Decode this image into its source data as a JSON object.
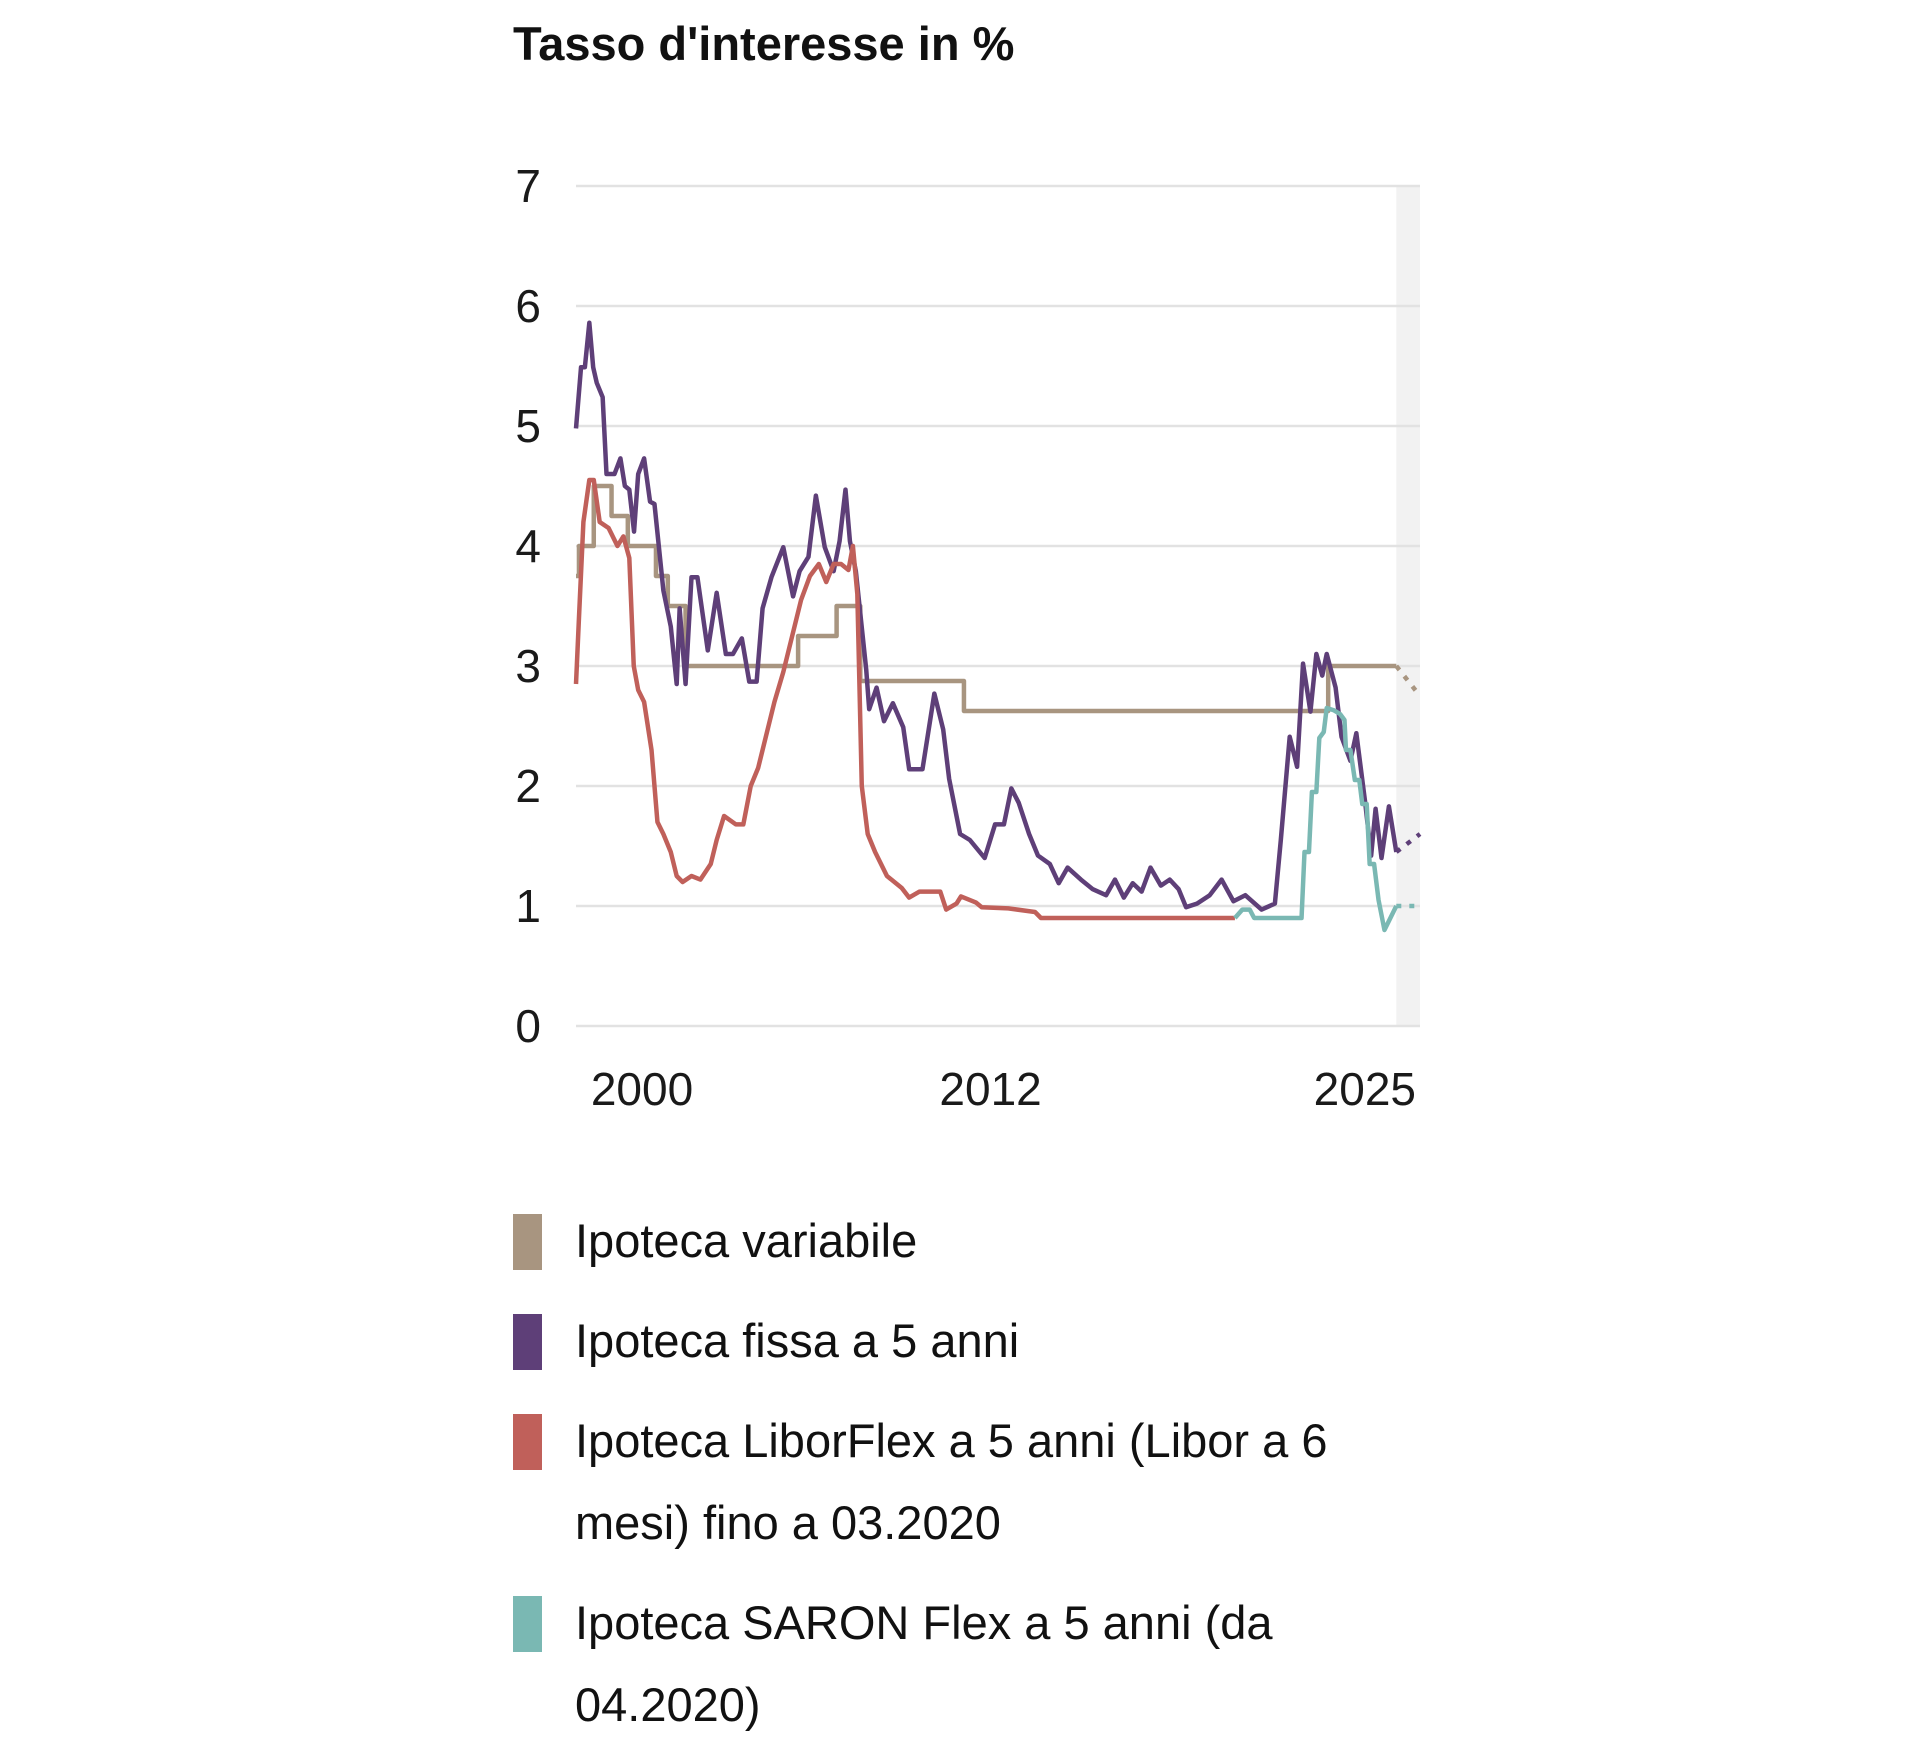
{
  "chart_data": {
    "type": "line",
    "title": "Tasso d'interesse in %",
    "xlabel": "",
    "ylabel": "",
    "xlim": [
      1998,
      2026.5
    ],
    "ylim": [
      0,
      7
    ],
    "y_ticks": [
      "0",
      "1",
      "2",
      "3",
      "4",
      "5",
      "6",
      "7"
    ],
    "x_ticks": [
      "2000",
      "2012",
      "2025"
    ],
    "grid": true,
    "forecast_shading_from": 2025.7,
    "legend_placement": "bottom",
    "series": [
      {
        "name": "Ipoteca variabile",
        "color": "#a89580",
        "step": true,
        "points": [
          [
            1998.0,
            3.75
          ],
          [
            1998.1,
            4.0
          ],
          [
            1998.6,
            4.5
          ],
          [
            1999.2,
            4.25
          ],
          [
            1999.75,
            4.0
          ],
          [
            2000.7,
            3.75
          ],
          [
            2001.1,
            3.5
          ],
          [
            2001.7,
            3.0
          ],
          [
            2005.5,
            3.25
          ],
          [
            2006.8,
            3.5
          ],
          [
            2007.6,
            2.875
          ],
          [
            2011.1,
            2.625
          ],
          [
            2023.4,
            3.0
          ],
          [
            2025.7,
            3.0
          ]
        ],
        "forecast": [
          [
            2025.7,
            3.0
          ],
          [
            2026.5,
            2.75
          ]
        ]
      },
      {
        "name": "Ipoteca fissa a 5 anni",
        "color": "#5e3f78",
        "step": false,
        "points": [
          [
            1998.0,
            4.98
          ],
          [
            1998.17,
            5.49
          ],
          [
            1998.3,
            5.49
          ],
          [
            1998.45,
            5.86
          ],
          [
            1998.58,
            5.49
          ],
          [
            1998.7,
            5.36
          ],
          [
            1998.9,
            5.24
          ],
          [
            1999.03,
            4.6
          ],
          [
            1999.3,
            4.6
          ],
          [
            1999.5,
            4.73
          ],
          [
            1999.65,
            4.5
          ],
          [
            1999.8,
            4.47
          ],
          [
            1999.96,
            4.12
          ],
          [
            2000.1,
            4.6
          ],
          [
            2000.3,
            4.73
          ],
          [
            2000.5,
            4.37
          ],
          [
            2000.65,
            4.35
          ],
          [
            2000.95,
            3.63
          ],
          [
            2001.2,
            3.33
          ],
          [
            2001.4,
            2.85
          ],
          [
            2001.5,
            3.48
          ],
          [
            2001.7,
            2.85
          ],
          [
            2001.9,
            3.74
          ],
          [
            2002.1,
            3.74
          ],
          [
            2002.45,
            3.13
          ],
          [
            2002.75,
            3.61
          ],
          [
            2003.06,
            3.1
          ],
          [
            2003.3,
            3.1
          ],
          [
            2003.6,
            3.23
          ],
          [
            2003.85,
            2.87
          ],
          [
            2004.1,
            2.87
          ],
          [
            2004.3,
            3.48
          ],
          [
            2004.6,
            3.74
          ],
          [
            2005.0,
            3.99
          ],
          [
            2005.33,
            3.58
          ],
          [
            2005.55,
            3.79
          ],
          [
            2005.85,
            3.91
          ],
          [
            2006.1,
            4.42
          ],
          [
            2006.4,
            3.99
          ],
          [
            2006.7,
            3.79
          ],
          [
            2006.9,
            4.04
          ],
          [
            2007.1,
            4.47
          ],
          [
            2007.25,
            4.04
          ],
          [
            2007.45,
            3.79
          ],
          [
            2007.8,
            2.97
          ],
          [
            2007.9,
            2.64
          ],
          [
            2008.15,
            2.82
          ],
          [
            2008.4,
            2.54
          ],
          [
            2008.7,
            2.69
          ],
          [
            2009.05,
            2.49
          ],
          [
            2009.25,
            2.14
          ],
          [
            2009.7,
            2.14
          ],
          [
            2010.1,
            2.77
          ],
          [
            2010.4,
            2.47
          ],
          [
            2010.6,
            2.06
          ],
          [
            2010.97,
            1.6
          ],
          [
            2011.3,
            1.55
          ],
          [
            2011.8,
            1.4
          ],
          [
            2012.15,
            1.68
          ],
          [
            2012.45,
            1.68
          ],
          [
            2012.7,
            1.98
          ],
          [
            2012.95,
            1.86
          ],
          [
            2013.3,
            1.6
          ],
          [
            2013.6,
            1.42
          ],
          [
            2014.0,
            1.35
          ],
          [
            2014.3,
            1.19
          ],
          [
            2014.6,
            1.32
          ],
          [
            2015.05,
            1.22
          ],
          [
            2015.45,
            1.14
          ],
          [
            2015.9,
            1.09
          ],
          [
            2016.2,
            1.22
          ],
          [
            2016.5,
            1.07
          ],
          [
            2016.8,
            1.19
          ],
          [
            2017.1,
            1.12
          ],
          [
            2017.4,
            1.32
          ],
          [
            2017.75,
            1.17
          ],
          [
            2018.05,
            1.22
          ],
          [
            2018.35,
            1.14
          ],
          [
            2018.6,
            0.99
          ],
          [
            2018.97,
            1.02
          ],
          [
            2019.4,
            1.09
          ],
          [
            2019.8,
            1.22
          ],
          [
            2020.2,
            1.04
          ],
          [
            2020.6,
            1.09
          ],
          [
            2021.15,
            0.97
          ],
          [
            2021.6,
            1.02
          ],
          [
            2021.8,
            1.55
          ],
          [
            2022.1,
            2.41
          ],
          [
            2022.35,
            2.16
          ],
          [
            2022.55,
            3.02
          ],
          [
            2022.8,
            2.62
          ],
          [
            2023.0,
            3.1
          ],
          [
            2023.2,
            2.92
          ],
          [
            2023.35,
            3.1
          ],
          [
            2023.65,
            2.82
          ],
          [
            2023.85,
            2.41
          ],
          [
            2024.15,
            2.21
          ],
          [
            2024.35,
            2.44
          ],
          [
            2024.65,
            1.86
          ],
          [
            2024.85,
            1.42
          ],
          [
            2025.0,
            1.81
          ],
          [
            2025.2,
            1.4
          ],
          [
            2025.45,
            1.83
          ],
          [
            2025.7,
            1.45
          ]
        ],
        "forecast": [
          [
            2025.7,
            1.45
          ],
          [
            2026.5,
            1.6
          ]
        ]
      },
      {
        "name": "Ipoteca LiborFlex a 5 anni (Libor a 6 mesi) fino a 03.2020",
        "color": "#c0605a",
        "step": false,
        "points": [
          [
            1998.0,
            2.85
          ],
          [
            1998.1,
            3.4
          ],
          [
            1998.25,
            4.2
          ],
          [
            1998.45,
            4.55
          ],
          [
            1998.6,
            4.55
          ],
          [
            1998.8,
            4.2
          ],
          [
            1999.1,
            4.15
          ],
          [
            1999.4,
            4.0
          ],
          [
            1999.6,
            4.08
          ],
          [
            1999.8,
            3.9
          ],
          [
            1999.95,
            3.0
          ],
          [
            2000.1,
            2.8
          ],
          [
            2000.3,
            2.7
          ],
          [
            2000.55,
            2.3
          ],
          [
            2000.75,
            1.7
          ],
          [
            2000.95,
            1.6
          ],
          [
            2001.2,
            1.45
          ],
          [
            2001.4,
            1.25
          ],
          [
            2001.6,
            1.2
          ],
          [
            2001.9,
            1.25
          ],
          [
            2002.2,
            1.22
          ],
          [
            2002.55,
            1.35
          ],
          [
            2002.75,
            1.55
          ],
          [
            2003.0,
            1.75
          ],
          [
            2003.4,
            1.68
          ],
          [
            2003.65,
            1.68
          ],
          [
            2003.9,
            2.0
          ],
          [
            2004.15,
            2.15
          ],
          [
            2004.4,
            2.4
          ],
          [
            2004.7,
            2.7
          ],
          [
            2005.0,
            2.95
          ],
          [
            2005.3,
            3.25
          ],
          [
            2005.6,
            3.55
          ],
          [
            2005.9,
            3.75
          ],
          [
            2006.2,
            3.85
          ],
          [
            2006.45,
            3.7
          ],
          [
            2006.7,
            3.85
          ],
          [
            2006.95,
            3.85
          ],
          [
            2007.2,
            3.8
          ],
          [
            2007.35,
            4.0
          ],
          [
            2007.5,
            3.6
          ],
          [
            2007.65,
            2.0
          ],
          [
            2007.85,
            1.6
          ],
          [
            2008.1,
            1.45
          ],
          [
            2008.5,
            1.25
          ],
          [
            2009.0,
            1.15
          ],
          [
            2009.25,
            1.07
          ],
          [
            2009.6,
            1.12
          ],
          [
            2010.3,
            1.12
          ],
          [
            2010.5,
            0.97
          ],
          [
            2010.85,
            1.02
          ],
          [
            2011.0,
            1.08
          ],
          [
            2011.5,
            1.03
          ],
          [
            2011.7,
            0.99
          ],
          [
            2012.6,
            0.98
          ],
          [
            2013.5,
            0.95
          ],
          [
            2013.7,
            0.9
          ],
          [
            2020.25,
            0.9
          ]
        ],
        "forecast": []
      },
      {
        "name": "Ipoteca SARON Flex a 5 anni (da 04.2020)",
        "color": "#7ab8b3",
        "step": false,
        "points": [
          [
            2020.25,
            0.9
          ],
          [
            2020.5,
            0.97
          ],
          [
            2020.75,
            0.97
          ],
          [
            2020.9,
            0.9
          ],
          [
            2022.5,
            0.9
          ],
          [
            2022.6,
            1.45
          ],
          [
            2022.75,
            1.45
          ],
          [
            2022.85,
            1.95
          ],
          [
            2023.0,
            1.95
          ],
          [
            2023.1,
            2.4
          ],
          [
            2023.25,
            2.45
          ],
          [
            2023.35,
            2.65
          ],
          [
            2023.6,
            2.63
          ],
          [
            2023.8,
            2.6
          ],
          [
            2023.95,
            2.55
          ],
          [
            2024.0,
            2.3
          ],
          [
            2024.15,
            2.3
          ],
          [
            2024.3,
            2.05
          ],
          [
            2024.45,
            2.05
          ],
          [
            2024.55,
            1.85
          ],
          [
            2024.7,
            1.85
          ],
          [
            2024.8,
            1.35
          ],
          [
            2024.95,
            1.35
          ],
          [
            2025.1,
            1.05
          ],
          [
            2025.3,
            0.8
          ],
          [
            2025.7,
            1.0
          ]
        ],
        "forecast": [
          [
            2025.7,
            1.0
          ],
          [
            2026.5,
            1.0
          ]
        ]
      }
    ]
  }
}
